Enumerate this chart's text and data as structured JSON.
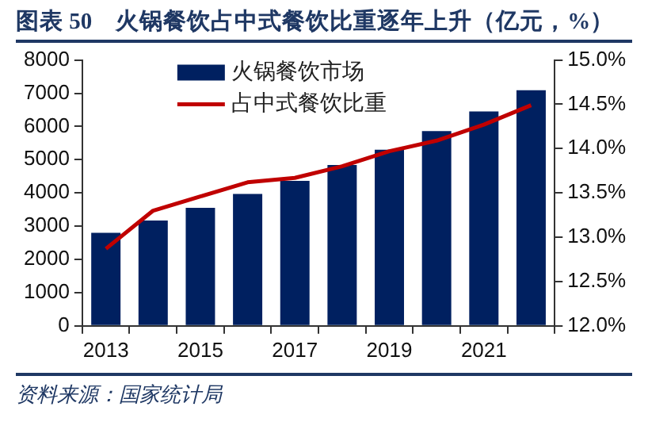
{
  "chart_data": {
    "type": "bar",
    "title": "图表 50　火锅餐饮占中式餐饮比重逐年上升（亿元，%）",
    "categories": [
      "2013",
      null,
      "2015",
      null,
      "2017",
      null,
      "2019",
      null,
      "2021",
      null
    ],
    "series": [
      {
        "name": "火锅餐饮市场",
        "color": "#002060",
        "values": [
          2800,
          3170,
          3550,
          3970,
          4360,
          4840,
          5300,
          5860,
          6450,
          7090
        ]
      },
      {
        "name": "占中式餐饮比重",
        "type": "line",
        "axis": "y2",
        "color": "#c00000",
        "values": [
          12.87,
          13.3,
          13.46,
          13.62,
          13.67,
          13.8,
          13.97,
          14.09,
          14.27,
          14.49
        ]
      }
    ],
    "ylim": [
      0,
      8000
    ],
    "yticks": [
      0,
      1000,
      2000,
      3000,
      4000,
      5000,
      6000,
      7000,
      8000
    ],
    "y2lim": [
      12,
      15
    ],
    "y2ticks": [
      {
        "value": 12,
        "label": "12.0%"
      },
      {
        "value": 12.5,
        "label": "12.5%"
      },
      {
        "value": 13,
        "label": "13.0%"
      },
      {
        "value": 13.5,
        "label": "13.5%"
      },
      {
        "value": 14,
        "label": "14.0%"
      },
      {
        "value": 14.5,
        "label": "14.5%"
      },
      {
        "value": 15,
        "label": "15.0%"
      }
    ],
    "grid": false,
    "legend": "top left",
    "marker": "none",
    "annotations": [
      "资料来源：国家统计局"
    ]
  }
}
